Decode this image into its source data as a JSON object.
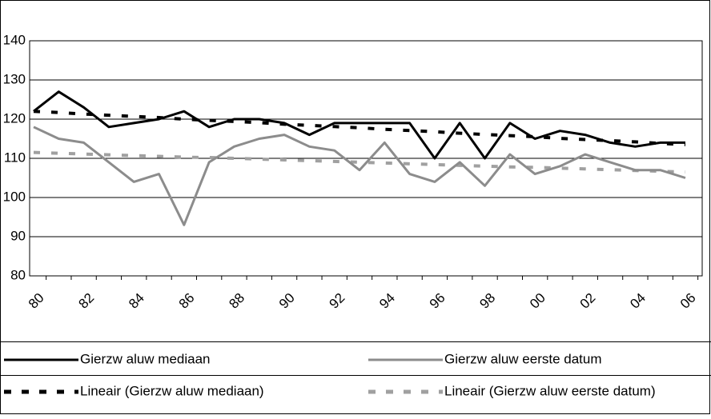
{
  "chart_data": {
    "type": "line",
    "categories": [
      "80",
      null,
      "82",
      null,
      "84",
      null,
      "86",
      null,
      "88",
      null,
      "90",
      null,
      "92",
      null,
      "94",
      null,
      "96",
      null,
      "98",
      null,
      "00",
      null,
      "02",
      null,
      "04",
      null,
      "06"
    ],
    "series": [
      {
        "name": "Gierzw aluw mediaan",
        "color": "#000000",
        "dashed": false,
        "values": [
          122,
          127,
          123,
          118,
          119,
          120,
          122,
          118,
          120,
          120,
          119,
          116,
          119,
          119,
          119,
          119,
          110,
          119,
          110,
          119,
          115,
          117,
          116,
          114,
          113,
          114,
          114
        ]
      },
      {
        "name": "Gierzw aluw eerste datum",
        "color": "#8c8c8c",
        "dashed": false,
        "values": [
          118,
          115,
          114,
          109,
          104,
          106,
          93,
          109,
          113,
          115,
          116,
          113,
          112,
          107,
          114,
          106,
          104,
          109,
          103,
          111,
          106,
          108,
          111,
          109,
          107,
          107,
          105
        ]
      },
      {
        "name": "Lineair (Gierzw aluw mediaan)",
        "color": "#000000",
        "dashed": true,
        "values": [
          122.0,
          121.7,
          121.3,
          121.0,
          120.7,
          120.4,
          120.0,
          119.7,
          119.4,
          119.1,
          118.7,
          118.4,
          118.1,
          117.8,
          117.4,
          117.1,
          116.8,
          116.4,
          116.1,
          115.8,
          115.5,
          115.1,
          114.8,
          114.5,
          114.2,
          113.8,
          113.5
        ]
      },
      {
        "name": "Lineair (Gierzw aluw eerste datum)",
        "color": "#a0a0a0",
        "dashed": true,
        "values": [
          111.5,
          111.3,
          111.1,
          110.9,
          110.7,
          110.5,
          110.3,
          110.2,
          110.0,
          109.8,
          109.6,
          109.4,
          109.2,
          109.0,
          108.8,
          108.6,
          108.4,
          108.2,
          108.0,
          107.8,
          107.7,
          107.5,
          107.3,
          107.1,
          106.9,
          106.7,
          106.5
        ]
      }
    ],
    "ylim": [
      80,
      140
    ],
    "yticks": [
      80,
      90,
      100,
      110,
      120,
      130,
      140
    ],
    "grid": true,
    "legend": "bottom"
  }
}
